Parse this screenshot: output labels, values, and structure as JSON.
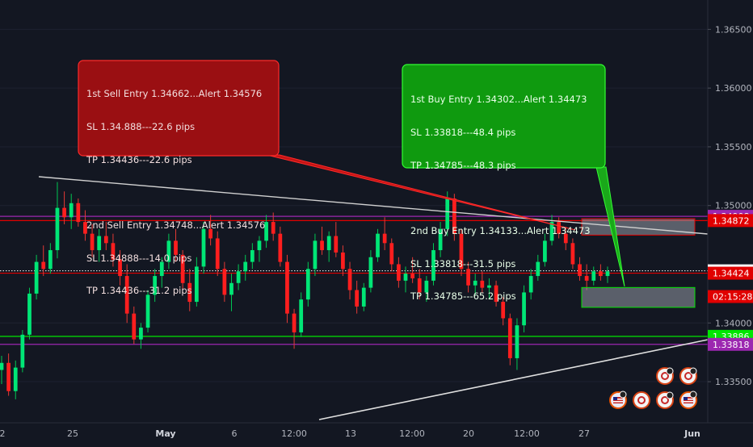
{
  "theme": {
    "background": "#131722",
    "bull": "#00e676",
    "bear": "#ff1e1e",
    "wick_bull": "#00c853",
    "wick_bear": "#e53935",
    "purple": "#9c27b0",
    "green_line": "#00e600",
    "red_line": "#e00000",
    "trend": "#d8d8d8"
  },
  "callouts": {
    "sell": {
      "lines": [
        "1st Sell Entry 1.34662...Alert 1.34576",
        "SL 1.34.888---22.6 pips",
        "TP 1.34436---22.6 pips",
        "",
        "2nd Sell Entry 1.34748...Alert 1.34576",
        "SL 1.34888---14.0 pips",
        "TP 1.34436---31.2 pips"
      ]
    },
    "buy": {
      "lines": [
        "1st Buy Entry 1.34302...Alert 1.34473",
        "SL 1.33818---48.4 pips",
        "TP 1.34785---48.3 pips",
        "",
        "2nd Buy Entry 1.34133...Alert 1.34473",
        "SL 1.33818---31.5 pips",
        "TP 1.34785---65.2 pips"
      ]
    }
  },
  "chart_data": {
    "type": "candlestick",
    "y_range": [
      1.3315,
      1.3675
    ],
    "y_axis_ticks": [
      "1.36500",
      "1.36000",
      "1.35500",
      "1.35000",
      "1.34000",
      "1.33500"
    ],
    "y_axis_tick_values": [
      1.365,
      1.36,
      1.355,
      1.35,
      1.34,
      1.335
    ],
    "x_axis_labels": [
      "2",
      "25",
      "May",
      "6",
      "12:00",
      "13",
      "12:00",
      "20",
      "12:00",
      "27",
      "Jun"
    ],
    "price_labels": [
      {
        "text": "1.34908",
        "value": 1.34908,
        "color": "#9c27b0"
      },
      {
        "text": "1.34872",
        "value": 1.34872,
        "color": "#e00000"
      },
      {
        "text": "1.34444",
        "value": 1.34444,
        "color": "#ffffff"
      },
      {
        "text": "1.34424",
        "value": 1.34424,
        "color": "#e00000"
      },
      {
        "text": "02:15:28",
        "value": 1.34225,
        "color": "#e00000"
      },
      {
        "text": "1.33886",
        "value": 1.33886,
        "color": "#00e600"
      },
      {
        "text": "1.33818",
        "value": 1.33818,
        "color": "#9c27b0"
      }
    ],
    "horizontal_lines": [
      {
        "value": 1.34908,
        "color": "#9c27b0"
      },
      {
        "value": 1.34872,
        "color": "#e00000"
      },
      {
        "value": 1.34444,
        "color": "#ffffff",
        "dotted": true
      },
      {
        "value": 1.34424,
        "color": "#e00000"
      },
      {
        "value": 1.33886,
        "color": "#00e600"
      },
      {
        "value": 1.33818,
        "color": "#9c27b0"
      }
    ],
    "zones": [
      {
        "from": 1.34748,
        "to": 1.34888,
        "border": "#e00000"
      },
      {
        "from": 1.34133,
        "to": 1.34302,
        "border": "#00e600"
      }
    ],
    "candles": [
      [
        1.336,
        1.3372,
        1.3348,
        1.3366
      ],
      [
        1.3366,
        1.3374,
        1.3338,
        1.3342
      ],
      [
        1.3342,
        1.3368,
        1.3335,
        1.3362
      ],
      [
        1.3362,
        1.3394,
        1.3358,
        1.339
      ],
      [
        1.339,
        1.343,
        1.3386,
        1.3425
      ],
      [
        1.3425,
        1.3458,
        1.342,
        1.3452
      ],
      [
        1.3452,
        1.3466,
        1.344,
        1.3446
      ],
      [
        1.3446,
        1.3468,
        1.3442,
        1.3462
      ],
      [
        1.3462,
        1.352,
        1.3455,
        1.3498
      ],
      [
        1.3498,
        1.3512,
        1.3484,
        1.349
      ],
      [
        1.349,
        1.351,
        1.348,
        1.3502
      ],
      [
        1.3502,
        1.3506,
        1.3482,
        1.3486
      ],
      [
        1.3486,
        1.3496,
        1.347,
        1.3476
      ],
      [
        1.3476,
        1.3484,
        1.3456,
        1.3462
      ],
      [
        1.3462,
        1.348,
        1.3452,
        1.3474
      ],
      [
        1.3474,
        1.3486,
        1.3462,
        1.3468
      ],
      [
        1.3468,
        1.3476,
        1.3448,
        1.3454
      ],
      [
        1.3454,
        1.3462,
        1.3432,
        1.344
      ],
      [
        1.344,
        1.345,
        1.34,
        1.3408
      ],
      [
        1.3408,
        1.3414,
        1.3382,
        1.3386
      ],
      [
        1.3386,
        1.34,
        1.3378,
        1.3396
      ],
      [
        1.3396,
        1.3428,
        1.3392,
        1.3424
      ],
      [
        1.3424,
        1.3446,
        1.3418,
        1.344
      ],
      [
        1.344,
        1.3456,
        1.343,
        1.3452
      ],
      [
        1.3452,
        1.3476,
        1.3446,
        1.347
      ],
      [
        1.347,
        1.348,
        1.3452,
        1.3458
      ],
      [
        1.3458,
        1.3462,
        1.3428,
        1.3434
      ],
      [
        1.3434,
        1.3446,
        1.341,
        1.3418
      ],
      [
        1.3418,
        1.3456,
        1.3414,
        1.3448
      ],
      [
        1.3448,
        1.3486,
        1.3442,
        1.348
      ],
      [
        1.348,
        1.3492,
        1.3466,
        1.3472
      ],
      [
        1.3472,
        1.3478,
        1.344,
        1.3446
      ],
      [
        1.3446,
        1.3452,
        1.3418,
        1.3424
      ],
      [
        1.3424,
        1.3442,
        1.341,
        1.3434
      ],
      [
        1.3434,
        1.345,
        1.3428,
        1.3444
      ],
      [
        1.3444,
        1.3458,
        1.3436,
        1.3452
      ],
      [
        1.3452,
        1.3468,
        1.3446,
        1.3462
      ],
      [
        1.3462,
        1.3474,
        1.3452,
        1.347
      ],
      [
        1.347,
        1.3492,
        1.3464,
        1.3486
      ],
      [
        1.3486,
        1.3494,
        1.347,
        1.3476
      ],
      [
        1.3476,
        1.3482,
        1.3448,
        1.3452
      ],
      [
        1.3452,
        1.3458,
        1.34,
        1.3408
      ],
      [
        1.3408,
        1.3412,
        1.3378,
        1.3392
      ],
      [
        1.3392,
        1.3426,
        1.3388,
        1.342
      ],
      [
        1.342,
        1.3452,
        1.3414,
        1.3446
      ],
      [
        1.3446,
        1.3476,
        1.344,
        1.347
      ],
      [
        1.347,
        1.3482,
        1.3458,
        1.3462
      ],
      [
        1.3462,
        1.3478,
        1.3452,
        1.3474
      ],
      [
        1.3474,
        1.3486,
        1.3456,
        1.346
      ],
      [
        1.346,
        1.3466,
        1.344,
        1.3446
      ],
      [
        1.3446,
        1.3452,
        1.342,
        1.3428
      ],
      [
        1.3428,
        1.3436,
        1.3408,
        1.3414
      ],
      [
        1.3414,
        1.3434,
        1.341,
        1.343
      ],
      [
        1.343,
        1.3462,
        1.3426,
        1.3456
      ],
      [
        1.3456,
        1.348,
        1.3452,
        1.3476
      ],
      [
        1.3476,
        1.349,
        1.3462,
        1.3468
      ],
      [
        1.3468,
        1.3472,
        1.3444,
        1.345
      ],
      [
        1.345,
        1.3456,
        1.343,
        1.3436
      ],
      [
        1.3436,
        1.3448,
        1.3426,
        1.3442
      ],
      [
        1.3442,
        1.3456,
        1.3434,
        1.3438
      ],
      [
        1.3438,
        1.3446,
        1.342,
        1.3426
      ],
      [
        1.3426,
        1.344,
        1.3418,
        1.3436
      ],
      [
        1.3436,
        1.3468,
        1.3432,
        1.3462
      ],
      [
        1.3462,
        1.3486,
        1.3456,
        1.348
      ],
      [
        1.348,
        1.3512,
        1.3474,
        1.3506
      ],
      [
        1.3506,
        1.351,
        1.347,
        1.3476
      ],
      [
        1.3476,
        1.348,
        1.344,
        1.3446
      ],
      [
        1.3446,
        1.3452,
        1.3426,
        1.3432
      ],
      [
        1.3432,
        1.3442,
        1.3424,
        1.3436
      ],
      [
        1.3436,
        1.3444,
        1.3426,
        1.343
      ],
      [
        1.343,
        1.3438,
        1.342,
        1.3432
      ],
      [
        1.3432,
        1.3436,
        1.3414,
        1.3418
      ],
      [
        1.3418,
        1.3422,
        1.3398,
        1.3404
      ],
      [
        1.3404,
        1.3408,
        1.3364,
        1.337
      ],
      [
        1.337,
        1.3404,
        1.336,
        1.3398
      ],
      [
        1.3398,
        1.3432,
        1.3392,
        1.3426
      ],
      [
        1.3426,
        1.3446,
        1.342,
        1.344
      ],
      [
        1.344,
        1.3458,
        1.3436,
        1.3452
      ],
      [
        1.3452,
        1.3476,
        1.3448,
        1.347
      ],
      [
        1.347,
        1.3492,
        1.3466,
        1.3486
      ],
      [
        1.3486,
        1.349,
        1.3472,
        1.3476
      ],
      [
        1.3476,
        1.3482,
        1.3462,
        1.3468
      ],
      [
        1.3468,
        1.3472,
        1.3446,
        1.345
      ],
      [
        1.345,
        1.3456,
        1.3436,
        1.344
      ],
      [
        1.344,
        1.345,
        1.3428,
        1.3436
      ],
      [
        1.3436,
        1.3448,
        1.3432,
        1.3444
      ],
      [
        1.3444,
        1.345,
        1.3436,
        1.344
      ],
      [
        1.344,
        1.3448,
        1.3434,
        1.3444
      ]
    ]
  }
}
